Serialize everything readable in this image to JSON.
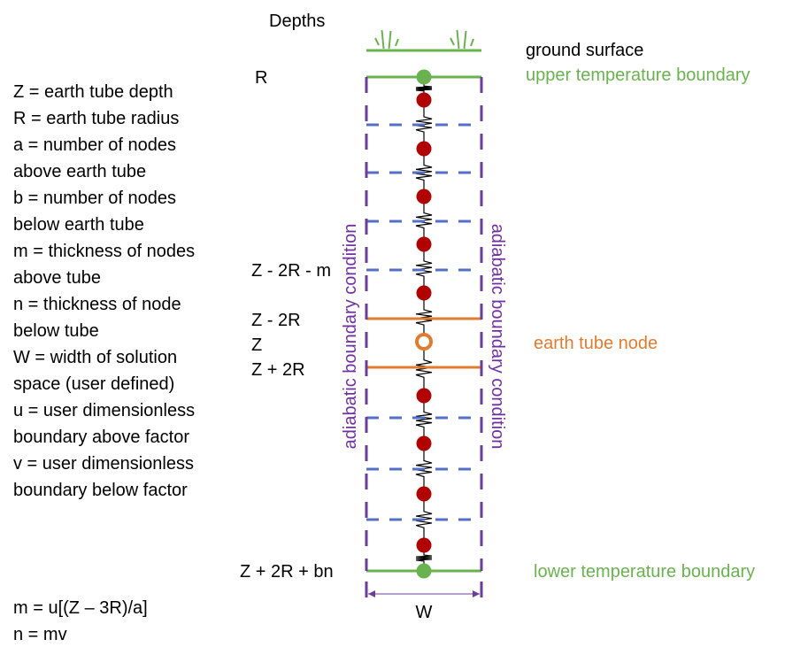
{
  "legend": [
    "Z = earth tube depth",
    "R = earth tube radius",
    "a = number of nodes",
    "above earth tube",
    "b = number of nodes",
    "below earth tube",
    "m = thickness of nodes",
    "above tube",
    "n = thickness of node",
    "below tube",
    "W = width of solution",
    "space (user defined)",
    "u = user dimensionless",
    "boundary above factor",
    "v = user dimensionless",
    "boundary below factor"
  ],
  "formulas": [
    "m = u[(Z – 3R)/a]",
    "n = mv"
  ],
  "depths": {
    "title": "Depths",
    "r": "R",
    "above": "Z - 2R - m",
    "top_tube": "Z - 2R",
    "z": "Z",
    "bottom_tube": "Z + 2R",
    "bottom": "Z  + 2R + bn"
  },
  "labels": {
    "ground": "ground surface",
    "upper": "upper temperature boundary",
    "tube_node": "earth tube node",
    "lower": "lower temperature boundary",
    "adiabatic_left": "adiabatic boundary condition",
    "adiabatic_right": "adiabatic boundary condition",
    "width": "W"
  },
  "colors": {
    "green": "#6ab150",
    "purple": "#6a3d9a",
    "blue_dash": "#5470c6",
    "orange": "#e07b30",
    "node_red": "#b00000",
    "text_green": "#6ab150",
    "text_orange": "#e07b30",
    "text_purple": "#7030a0"
  }
}
